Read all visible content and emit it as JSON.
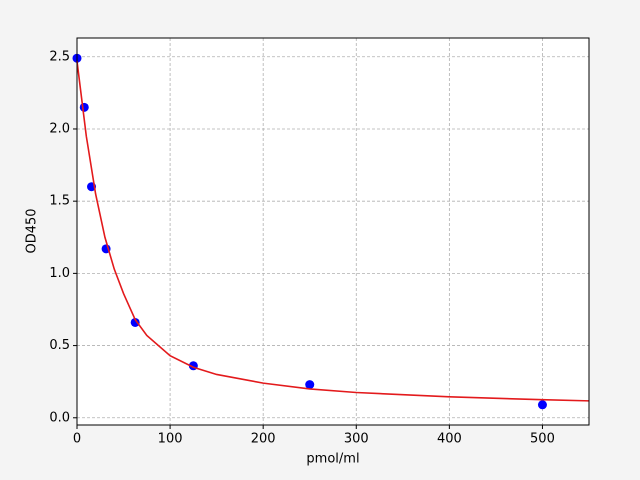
{
  "chart_data": {
    "type": "scatter",
    "xlabel": "pmol/ml",
    "ylabel": "OD450",
    "xlim": [
      0,
      550
    ],
    "ylim": [
      -0.05,
      2.63
    ],
    "xticks": [
      0,
      100,
      200,
      300,
      400,
      500
    ],
    "yticks": [
      {
        "value": 0,
        "label": "0.0"
      },
      0.5,
      {
        "value": 1,
        "label": "1.0"
      },
      1.5,
      {
        "value": 2,
        "label": "2.0"
      },
      2.5
    ],
    "grid": true,
    "series": [
      {
        "mode": "markers",
        "color": "#0000ff",
        "x": [
          0,
          7.8,
          15.6,
          31.25,
          62.5,
          125,
          250,
          500
        ],
        "y": [
          2.49,
          2.15,
          1.6,
          1.17,
          0.66,
          0.36,
          0.23,
          0.09
        ]
      },
      {
        "mode": "line",
        "color": "#e31a1c",
        "x": [
          0,
          10,
          20,
          30,
          40,
          50,
          62.5,
          75,
          100,
          125,
          150,
          200,
          250,
          300,
          400,
          500,
          550
        ],
        "y": [
          2.47,
          1.95,
          1.55,
          1.25,
          1.03,
          0.86,
          0.68,
          0.57,
          0.43,
          0.35,
          0.3,
          0.24,
          0.2,
          0.175,
          0.145,
          0.125,
          0.117
        ]
      }
    ]
  }
}
